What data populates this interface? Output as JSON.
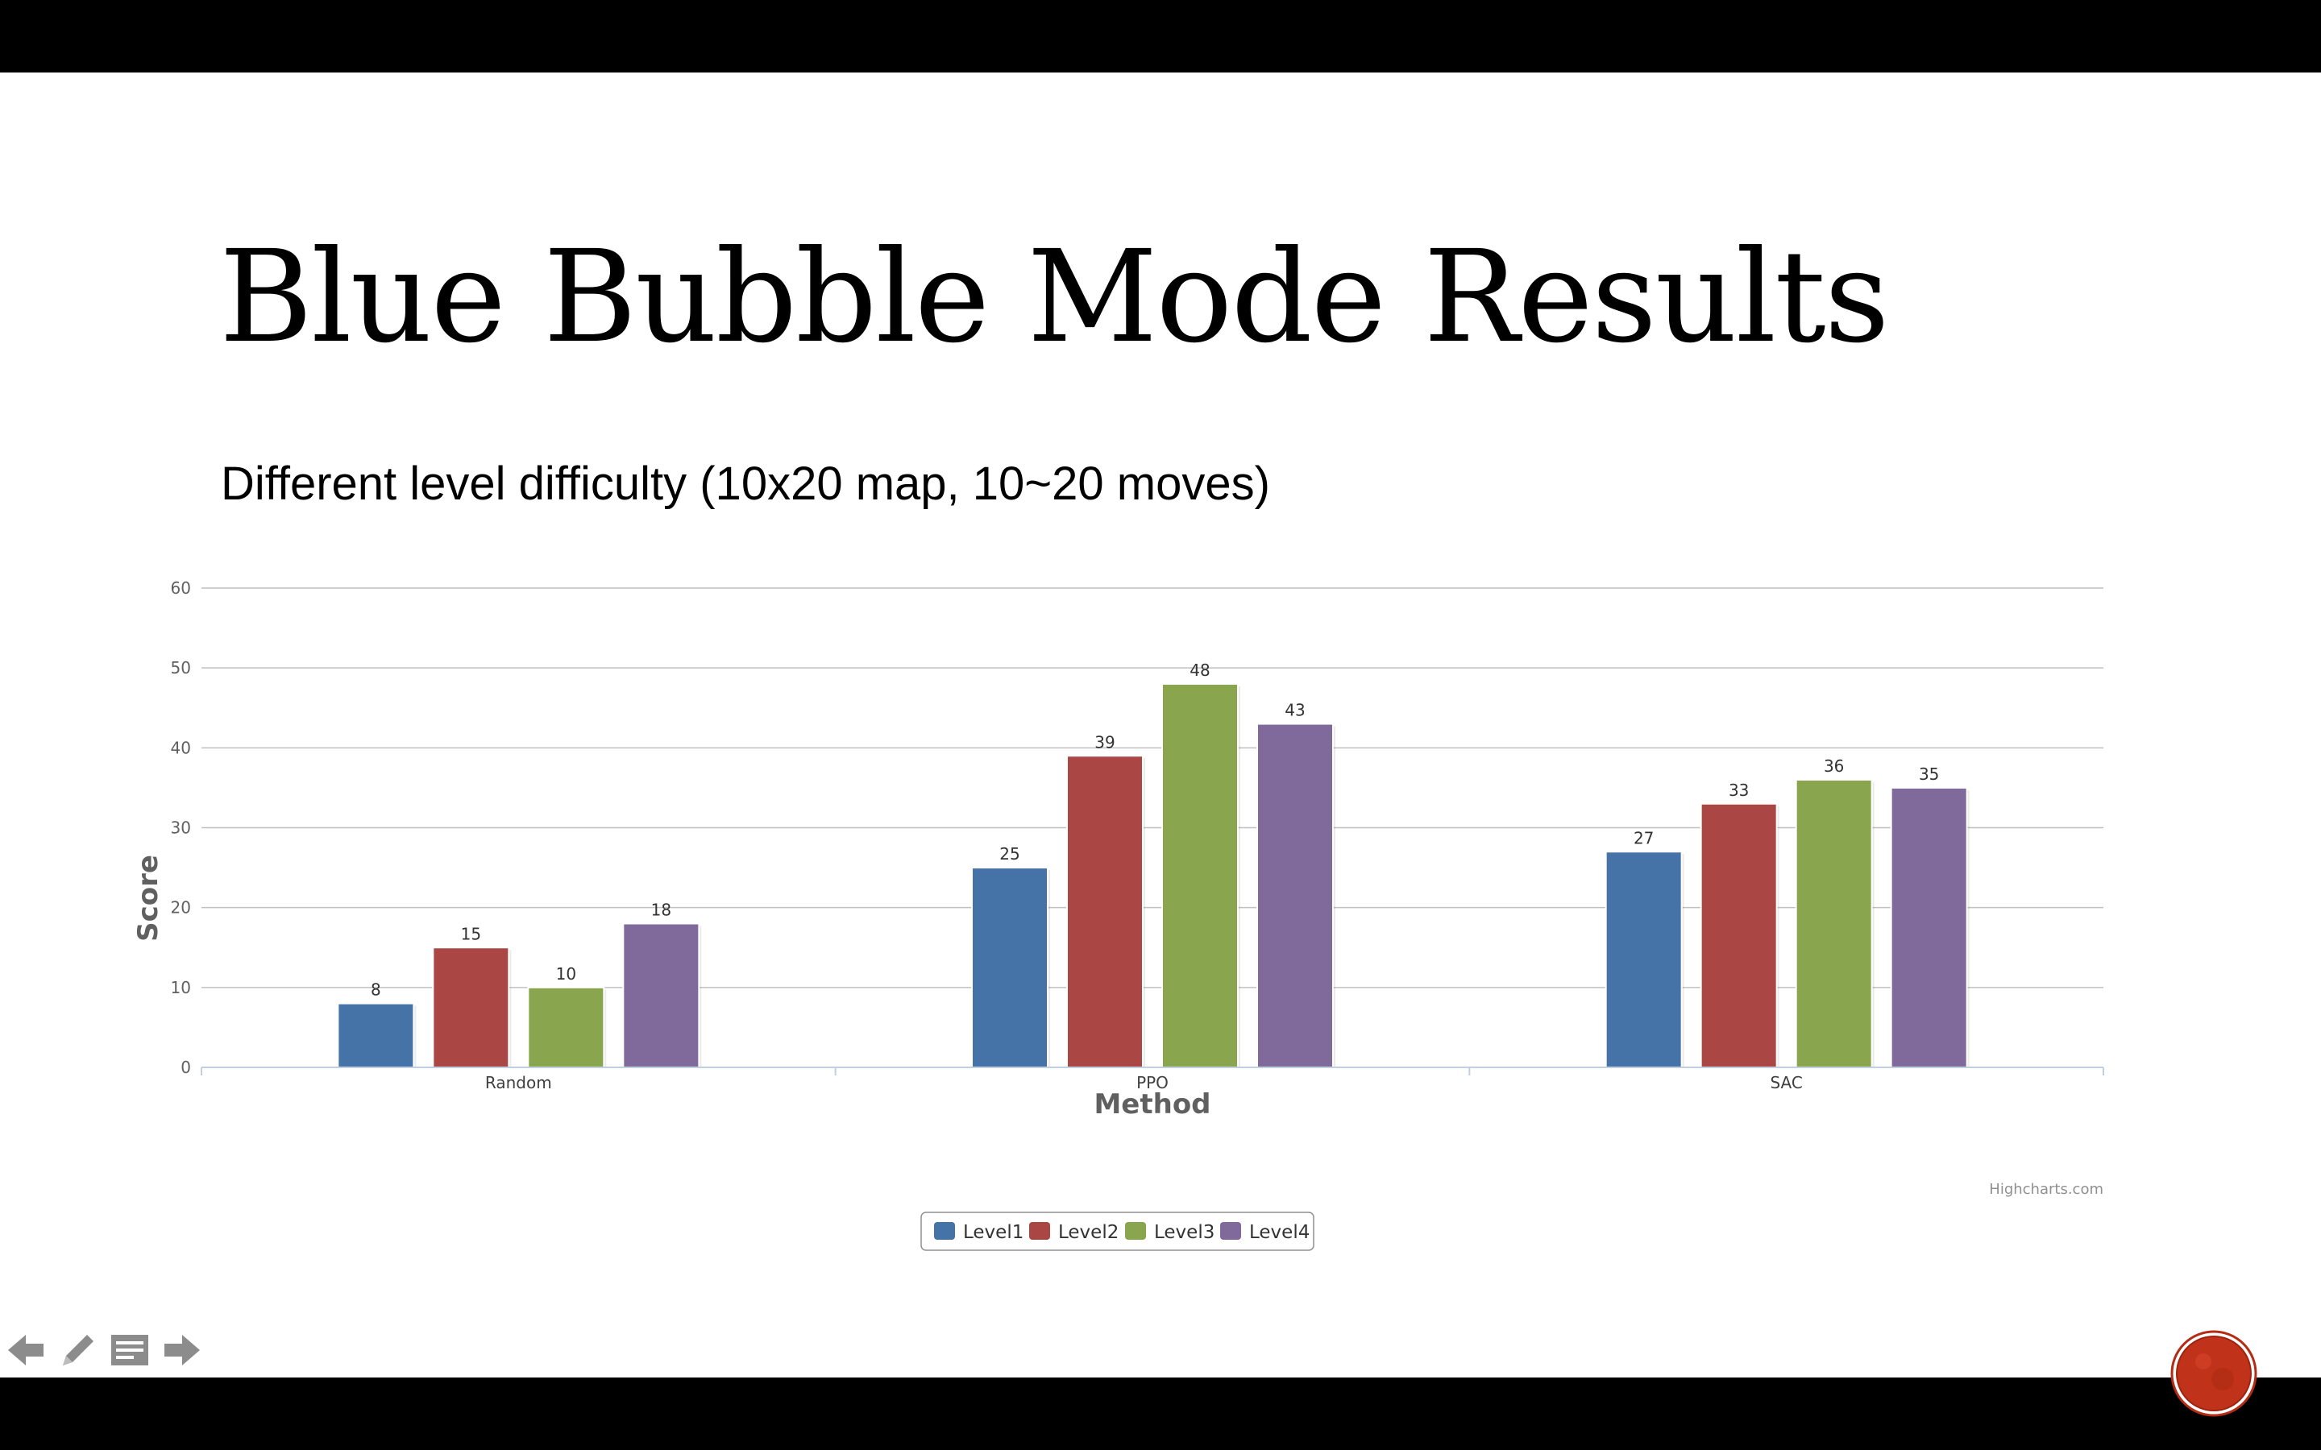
{
  "slide": {
    "title": "Blue Bubble Mode Results",
    "subtitle": "Different level difficulty (10x20 map, 10~20 moves)"
  },
  "chart_data": {
    "type": "bar",
    "categories": [
      "Random",
      "PPO",
      "SAC"
    ],
    "series": [
      {
        "name": "Level1",
        "values": [
          8,
          25,
          27
        ],
        "color": "#4572A7"
      },
      {
        "name": "Level2",
        "values": [
          15,
          39,
          33
        ],
        "color": "#AA4643"
      },
      {
        "name": "Level3",
        "values": [
          10,
          48,
          36
        ],
        "color": "#89A54E"
      },
      {
        "name": "Level4",
        "values": [
          18,
          43,
          35
        ],
        "color": "#80699B"
      }
    ],
    "xlabel": "Method",
    "ylabel": "Score",
    "ylim": [
      0,
      60
    ],
    "yticks": [
      0,
      10,
      20,
      30,
      40,
      50,
      60
    ],
    "grid": true,
    "legend": "bottom-center",
    "data_labels": true,
    "credits": "Highcharts.com"
  },
  "controls": {
    "icons": [
      "arrow-left-icon",
      "pencil-icon",
      "notes-icon",
      "arrow-right-icon"
    ]
  },
  "colors": {
    "background": "#ffffff",
    "letterbox": "#000000",
    "seal": "#C0321A"
  }
}
